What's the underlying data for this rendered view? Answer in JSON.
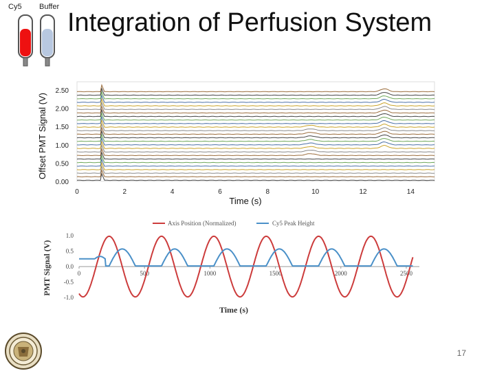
{
  "slide": {
    "title": "Integration of Perfusion System",
    "page_number": "17",
    "tubes": [
      {
        "label": "Cy5",
        "color": "#ee1111"
      },
      {
        "label": "Buffer",
        "color": "#b8c8e0"
      }
    ]
  },
  "chart_data": [
    {
      "type": "line",
      "ylabel": "Offset PMT Signal (V)",
      "xlabel": "Time (s)",
      "xlim": [
        0,
        15
      ],
      "ylim": [
        0,
        2.5
      ],
      "x_ticks": [
        "0",
        "2",
        "4",
        "6",
        "8",
        "10",
        "12",
        "14"
      ],
      "y_ticks": [
        "0.00",
        "0.50",
        "1.00",
        "1.50",
        "2.00",
        "2.50"
      ],
      "traces": 26,
      "spikes_at_x": [
        1.0,
        9.8,
        12.9
      ],
      "trace_colors": [
        "#444444",
        "#9a6b3a",
        "#888888",
        "#c9a227",
        "#4a6fa5",
        "#6fa85a"
      ]
    },
    {
      "type": "line",
      "xlabel": "Time (s)",
      "ylabel": "PMT Signal (V)",
      "xlim": [
        0,
        2600
      ],
      "ylim": [
        -1.0,
        1.0
      ],
      "x_ticks": [
        "0",
        "500",
        "1000",
        "1500",
        "2000",
        "2500"
      ],
      "y_ticks": [
        "1.0",
        "0.5",
        "0.0",
        "-0.5",
        "-1.0"
      ],
      "series": [
        {
          "name": "Axis Position (Normalized)",
          "color": "#cc3b3b",
          "period": 400
        },
        {
          "name": "Cy5 Peak Height",
          "color": "#4a90c8"
        }
      ]
    }
  ]
}
